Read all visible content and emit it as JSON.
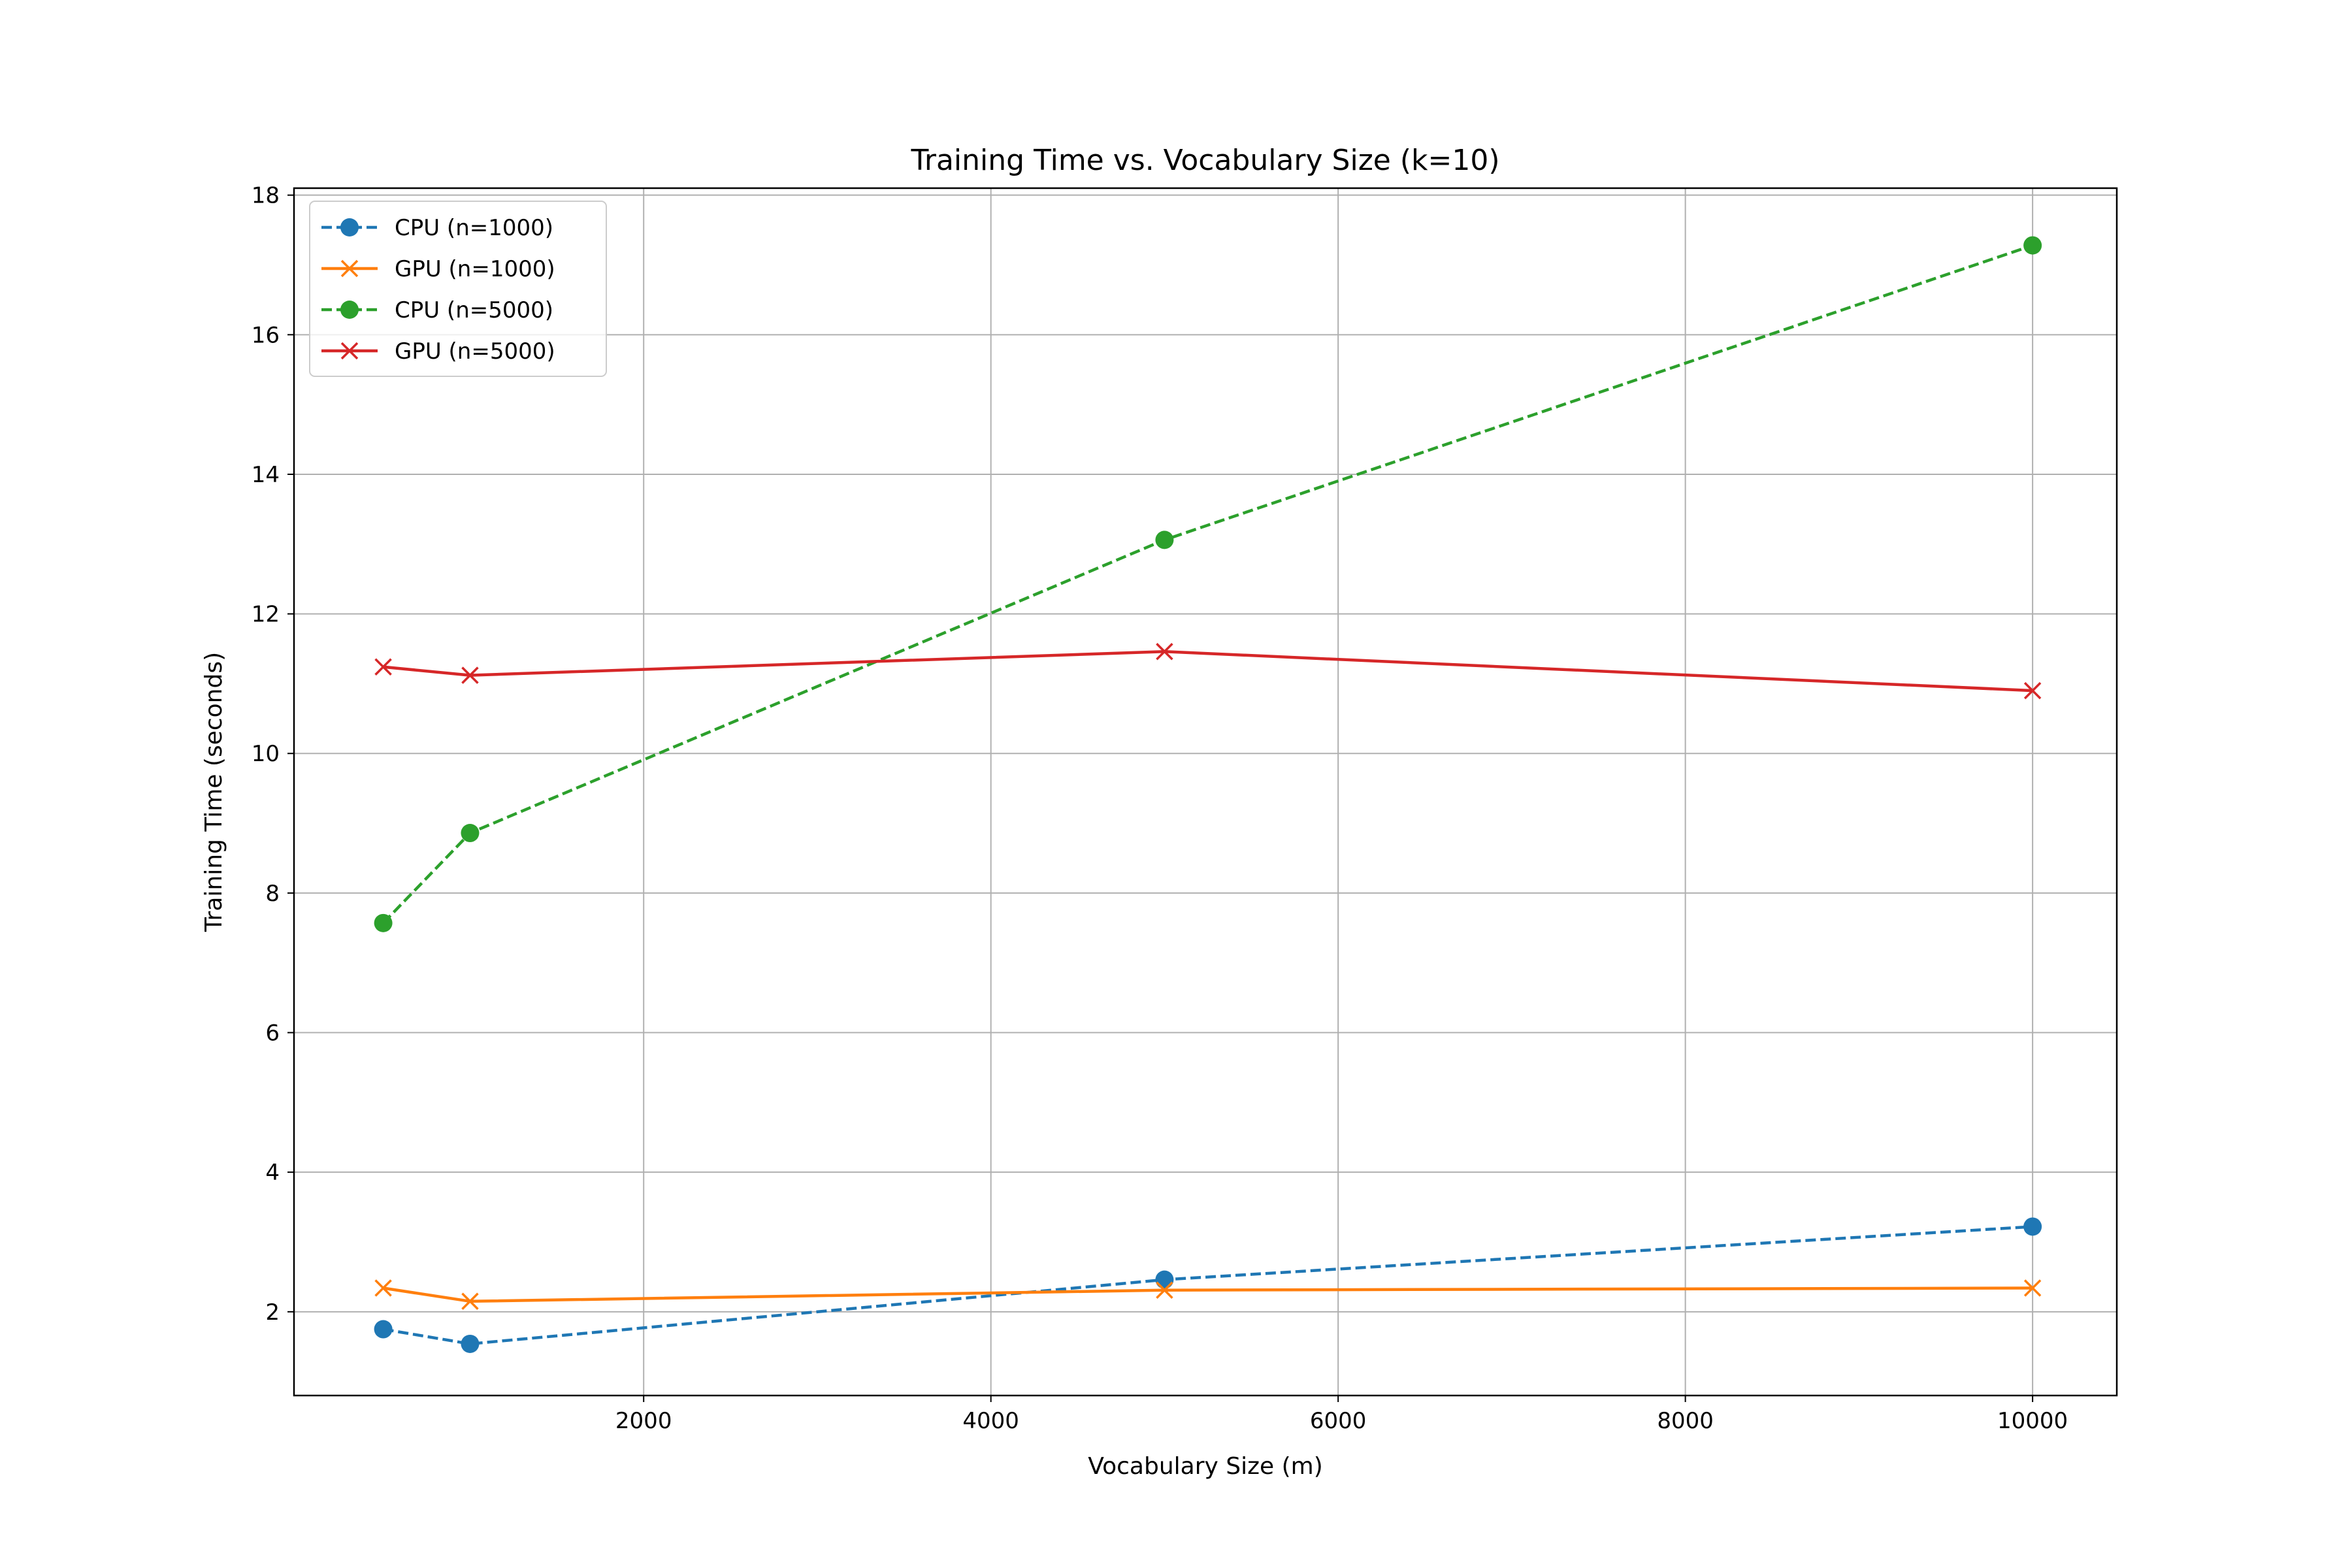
{
  "chart_data": {
    "type": "line",
    "title": "Training Time vs. Vocabulary Size (k=10)",
    "xlabel": "Vocabulary Size (m)",
    "ylabel": "Training Time (seconds)",
    "xlim": [
      -14,
      10485
    ],
    "ylim": [
      0.8,
      18.1
    ],
    "xticks": [
      2000,
      4000,
      6000,
      8000,
      10000
    ],
    "yticks": [
      2,
      4,
      6,
      8,
      10,
      12,
      14,
      16,
      18
    ],
    "grid": true,
    "legend_position": "upper left",
    "x": [
      500,
      1000,
      5000,
      10000
    ],
    "series": [
      {
        "name": "CPU (n=1000)",
        "values": [
          1.75,
          1.54,
          2.46,
          3.22
        ],
        "color": "#1f77b4",
        "dash": "dashed",
        "marker": "circle"
      },
      {
        "name": "GPU (n=1000)",
        "values": [
          2.34,
          2.15,
          2.31,
          2.34
        ],
        "color": "#ff7f0e",
        "dash": "solid",
        "marker": "x"
      },
      {
        "name": "CPU (n=5000)",
        "values": [
          7.57,
          8.86,
          13.06,
          17.28
        ],
        "color": "#2ca02c",
        "dash": "dashed",
        "marker": "circle"
      },
      {
        "name": "GPU (n=5000)",
        "values": [
          11.24,
          11.12,
          11.46,
          10.9
        ],
        "color": "#d62728",
        "dash": "solid",
        "marker": "x"
      }
    ]
  }
}
